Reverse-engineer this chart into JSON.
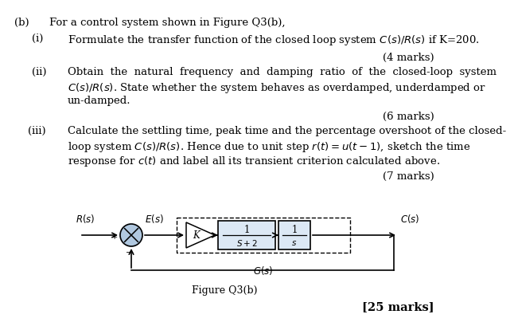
{
  "background_color": "#ffffff",
  "part_b_label": "(b)",
  "part_b_text": "For a control system shown in Figure Q3(b),",
  "part_i_label": "(i)",
  "part_i_text": "Formulate the transfer function of the closed loop system $C(s)/R(s)$ if K=200.",
  "part_i_marks": "(4 marks)",
  "part_ii_label": "(ii)",
  "part_ii_line1": "Obtain  the  natural  frequency  and  damping  ratio  of  the  closed-loop  system",
  "part_ii_line2": "$C(s)/R(s)$. State whether the system behaves as overdamped, underdamped or",
  "part_ii_line3": "un-damped.",
  "part_ii_marks": "(6 marks)",
  "part_iii_label": "(iii)",
  "part_iii_line1": "Calculate the settling time, peak time and the percentage overshoot of the closed-",
  "part_iii_line2": "loop system $C(s)/R(s)$. Hence due to unit step $r(t) = u(t-1)$, sketch the time",
  "part_iii_line3": "response for $c(t)$ and label all its transient criterion calculated above.",
  "part_iii_marks": "(7 marks)",
  "figure_label": "Figure Q3(b)",
  "total_marks": "[25 marks]",
  "font_size_body": 9.5,
  "font_size_marks": 9.5,
  "font_size_diagram": 8.5
}
